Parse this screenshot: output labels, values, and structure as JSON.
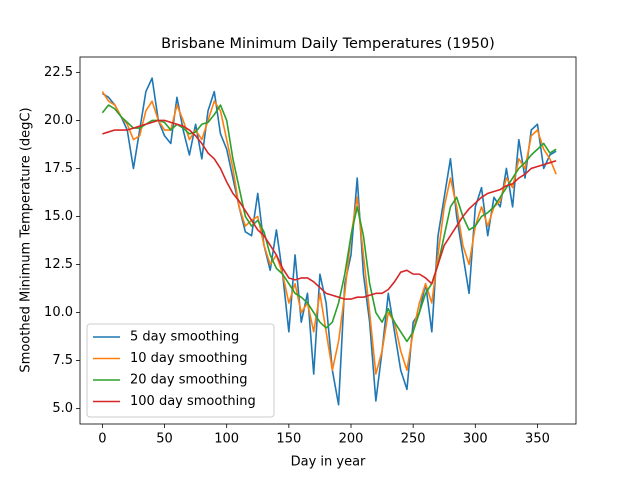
{
  "chart_data": {
    "type": "line",
    "title": "Brisbane Minimum Daily Temperatures (1950)",
    "xlabel": "Day in year",
    "ylabel": "Smoothed Minimum Temperature (degC)",
    "x": [
      0,
      5,
      10,
      15,
      20,
      25,
      30,
      35,
      40,
      45,
      50,
      55,
      60,
      65,
      70,
      75,
      80,
      85,
      90,
      95,
      100,
      105,
      110,
      115,
      120,
      125,
      130,
      135,
      140,
      145,
      150,
      155,
      160,
      165,
      170,
      175,
      180,
      185,
      190,
      195,
      200,
      205,
      210,
      215,
      220,
      225,
      230,
      235,
      240,
      245,
      250,
      255,
      260,
      265,
      270,
      275,
      280,
      285,
      290,
      295,
      300,
      305,
      310,
      315,
      320,
      325,
      330,
      335,
      340,
      345,
      350,
      355,
      360,
      365
    ],
    "series": [
      {
        "name": "5 day smoothing",
        "color": "#1f77b4",
        "values": [
          21.4,
          21.2,
          20.8,
          20.2,
          19.5,
          17.5,
          19.5,
          21.5,
          22.2,
          20.0,
          19.2,
          18.8,
          21.2,
          19.5,
          18.2,
          19.8,
          18.0,
          20.5,
          21.5,
          19.3,
          18.5,
          17.0,
          15.5,
          14.2,
          14.0,
          16.2,
          13.5,
          12.2,
          14.3,
          12.0,
          9.0,
          13.0,
          9.5,
          11.0,
          6.8,
          12.0,
          10.5,
          7.0,
          5.2,
          11.5,
          13.0,
          17.0,
          12.0,
          9.5,
          5.4,
          8.0,
          11.0,
          9.0,
          7.0,
          6.0,
          9.5,
          10.0,
          11.5,
          9.0,
          14.0,
          16.0,
          18.0,
          15.0,
          13.0,
          11.0,
          15.5,
          16.5,
          14.0,
          16.0,
          15.5,
          17.5,
          15.5,
          19.0,
          17.0,
          19.5,
          19.8,
          17.5,
          18.2,
          18.4
        ]
      },
      {
        "name": "10 day smoothing",
        "color": "#ff7f0e",
        "values": [
          21.5,
          21.0,
          20.8,
          20.2,
          19.8,
          19.0,
          19.2,
          20.5,
          21.0,
          20.0,
          19.5,
          19.5,
          20.8,
          20.0,
          19.0,
          19.5,
          19.0,
          20.0,
          21.0,
          20.5,
          19.0,
          17.5,
          15.5,
          14.5,
          14.8,
          15.0,
          13.5,
          12.5,
          13.0,
          12.0,
          10.5,
          11.5,
          10.0,
          10.5,
          9.0,
          11.0,
          9.0,
          7.0,
          8.5,
          11.0,
          14.0,
          16.0,
          13.0,
          10.0,
          6.8,
          8.0,
          10.0,
          9.5,
          8.0,
          7.0,
          9.0,
          10.5,
          11.5,
          10.5,
          13.0,
          15.5,
          17.0,
          15.5,
          13.5,
          12.5,
          14.5,
          15.5,
          14.5,
          15.5,
          15.8,
          17.0,
          16.5,
          18.0,
          17.5,
          19.2,
          19.5,
          18.5,
          18.0,
          17.2
        ]
      },
      {
        "name": "20 day smoothing",
        "color": "#2ca02c",
        "values": [
          20.4,
          20.8,
          20.6,
          20.2,
          19.9,
          19.6,
          19.6,
          19.8,
          20.0,
          20.0,
          19.9,
          19.5,
          19.8,
          19.6,
          19.3,
          19.4,
          19.8,
          19.9,
          20.3,
          20.8,
          20.0,
          18.0,
          16.5,
          15.0,
          14.5,
          14.8,
          14.2,
          13.0,
          12.3,
          12.0,
          11.5,
          11.0,
          10.8,
          10.5,
          10.0,
          9.5,
          9.2,
          9.5,
          10.5,
          12.0,
          14.0,
          15.5,
          14.0,
          11.5,
          10.0,
          9.5,
          10.2,
          9.5,
          9.0,
          8.5,
          9.0,
          10.0,
          11.0,
          11.5,
          12.5,
          14.0,
          15.5,
          16.0,
          15.0,
          14.3,
          14.5,
          15.0,
          15.2,
          15.5,
          16.0,
          16.5,
          17.0,
          17.5,
          17.8,
          18.2,
          18.5,
          18.8,
          18.3,
          18.5
        ]
      },
      {
        "name": "100 day smoothing",
        "color": "#d62728",
        "values": [
          19.3,
          19.4,
          19.5,
          19.5,
          19.5,
          19.6,
          19.7,
          19.8,
          19.9,
          20.0,
          20.0,
          19.9,
          19.8,
          19.7,
          19.5,
          19.2,
          18.8,
          18.3,
          18.0,
          17.5,
          16.8,
          16.2,
          15.8,
          15.3,
          14.8,
          14.3,
          14.0,
          13.5,
          13.0,
          12.3,
          11.8,
          11.7,
          11.8,
          11.8,
          11.6,
          11.3,
          11.0,
          10.9,
          10.8,
          10.7,
          10.7,
          10.8,
          10.8,
          10.9,
          11.0,
          11.0,
          11.2,
          11.6,
          12.1,
          12.2,
          12.0,
          12.0,
          11.8,
          11.5,
          12.5,
          13.5,
          14.0,
          14.5,
          15.0,
          15.4,
          15.7,
          16.0,
          16.2,
          16.3,
          16.4,
          16.6,
          16.7,
          17.0,
          17.2,
          17.5,
          17.6,
          17.7,
          17.8,
          17.9
        ]
      }
    ],
    "xlim": [
      -18,
      381
    ],
    "ylim": [
      4.2,
      23.3
    ],
    "xticks": [
      0,
      50,
      100,
      150,
      200,
      250,
      300,
      350
    ],
    "yticks": [
      {
        "value": 5,
        "label": "5.0"
      },
      7.5,
      {
        "value": 10,
        "label": "10.0"
      },
      12.5,
      {
        "value": 15,
        "label": "15.0"
      },
      17.5,
      {
        "value": 20,
        "label": "20.0"
      },
      22.5
    ],
    "legend": "lower left"
  }
}
